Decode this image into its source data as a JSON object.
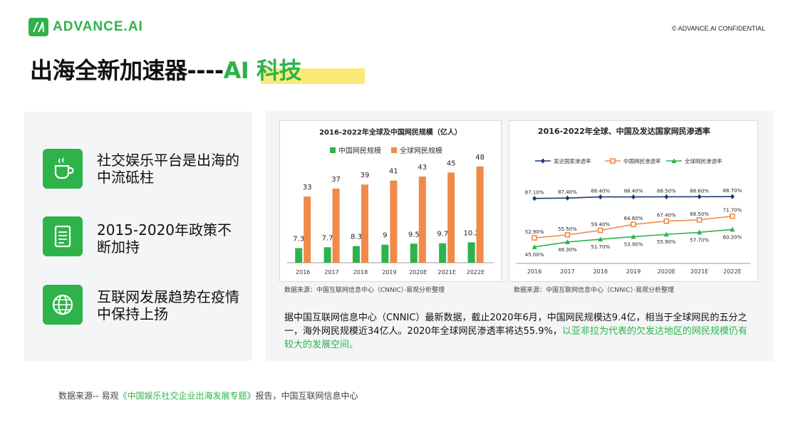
{
  "header": {
    "logo_text": "ADVANCE.AI",
    "confidential": "© ADVANCE.AI CONFIDENTIAL"
  },
  "title": {
    "main": "出海全新加速器----",
    "accent": "AI 科技"
  },
  "features": [
    {
      "icon": "coffee-cup-icon",
      "text": "社交娱乐平台是出海的中流砥柱"
    },
    {
      "icon": "document-icon",
      "text": "2015-2020年政策不断加持"
    },
    {
      "icon": "globe-icon",
      "text": "互联网发展趋势在疫情中保持上扬"
    }
  ],
  "colors": {
    "brand_green": "#2db34a",
    "orange": "#f0894a",
    "navy": "#1f3a6e",
    "highlight_yellow": "#fde97a"
  },
  "chart_data": [
    {
      "type": "bar",
      "title": "2016-2022年全球及中国网民规模（亿人）",
      "categories": [
        "2016",
        "2017",
        "2018",
        "2019",
        "2020E",
        "2021E",
        "2022E"
      ],
      "series": [
        {
          "name": "中国网民规模",
          "color": "#2db34a",
          "values": [
            7.3,
            7.7,
            8.3,
            9,
            9.5,
            9.7,
            10.2
          ],
          "labels": [
            "7.3",
            "7.7",
            "8.3",
            "9",
            "9.5",
            "9.7",
            "10.2"
          ]
        },
        {
          "name": "全球网民规模",
          "color": "#f0894a",
          "values": [
            33,
            37,
            39,
            41,
            43,
            45,
            48
          ],
          "labels": [
            "33",
            "37",
            "39",
            "41",
            "43",
            "45",
            "48"
          ]
        }
      ],
      "ylim": [
        0,
        54
      ],
      "legend": "top",
      "source": "数据来源：中国互联网信息中心（CNNIC）·易观分析整理"
    },
    {
      "type": "line",
      "title": "2016-2022年全球、中国及发达国家网民渗透率",
      "categories": [
        "2016",
        "2017",
        "2018",
        "2019",
        "2020E",
        "2021E",
        "2022E"
      ],
      "series": [
        {
          "name": "发达国家渗透率",
          "color": "#1f3a6e",
          "marker": "diamond",
          "values": [
            87.1,
            87.4,
            88.4,
            88.4,
            88.5,
            88.6,
            88.7
          ],
          "labels": [
            "87.10%",
            "87.40%",
            "88.40%",
            "88.40%",
            "88.50%",
            "88.60%",
            "88.70%"
          ]
        },
        {
          "name": "中国网民渗透率",
          "color": "#f0894a",
          "marker": "square",
          "values": [
            52.9,
            55.5,
            59.4,
            64.6,
            67.4,
            68.5,
            71.7
          ],
          "labels": [
            "52.90%",
            "55.50%",
            "59.40%",
            "64.60%",
            "67.40%",
            "68.50%",
            "71.70%"
          ]
        },
        {
          "name": "全球网民渗透率",
          "color": "#2db34a",
          "marker": "triangle",
          "values": [
            45.0,
            49.3,
            51.7,
            53.9,
            55.9,
            57.7,
            60.2
          ],
          "labels": [
            "45.00%",
            "49.30%",
            "51.70%",
            "53.90%",
            "55.90%",
            "57.70%",
            "60.20%"
          ]
        }
      ],
      "legend": "top",
      "source": "数据来源：中国互联网信息中心（CNNIC）·易观分析整理"
    }
  ],
  "description": {
    "text": "据中国互联网信息中心（CNNIC）最新数据，截止2020年6月，中国网民规模达9.4亿，相当于全球网民的五分之一，海外网民规模近34亿人。2020年全球网民渗透率将达55.9%，",
    "highlight": "以亚非拉为代表的欠发达地区的网民规模仍有较大的发展空间。"
  },
  "footer": {
    "prefix": "数据来源-- 易观",
    "highlight": "《中国娱乐社交企业出海发展专题》",
    "suffix": "报告，中国互联网信息中心"
  }
}
